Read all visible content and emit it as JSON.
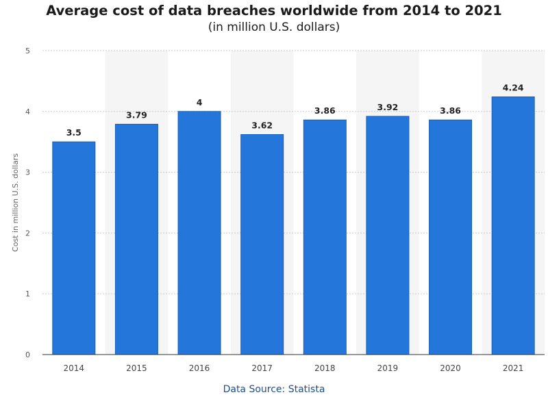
{
  "chart_data": {
    "type": "bar",
    "title": "Average cost of data breaches worldwide from 2014 to 2021",
    "subtitle": "(in million U.S. dollars)",
    "ylabel": "Cost in million U.S. dollars",
    "xlabel": "",
    "categories": [
      "2014",
      "2015",
      "2016",
      "2017",
      "2018",
      "2019",
      "2020",
      "2021"
    ],
    "values": [
      3.5,
      3.79,
      4,
      3.62,
      3.86,
      3.92,
      3.86,
      4.24
    ],
    "data_labels": [
      "3.5",
      "3.79",
      "4",
      "3.62",
      "3.86",
      "3.92",
      "3.86",
      "4.24"
    ],
    "ylim": [
      0,
      5
    ],
    "yticks": [
      "0",
      "1",
      "2",
      "3",
      "4",
      "5"
    ],
    "grid": true,
    "alternating_band_color": "#f5f5f5",
    "bar_color": "#2576db",
    "bar_edge_color": "#1b5fb5"
  },
  "source": {
    "text": "Data Source: Statista",
    "color": "#1f4e8c"
  }
}
